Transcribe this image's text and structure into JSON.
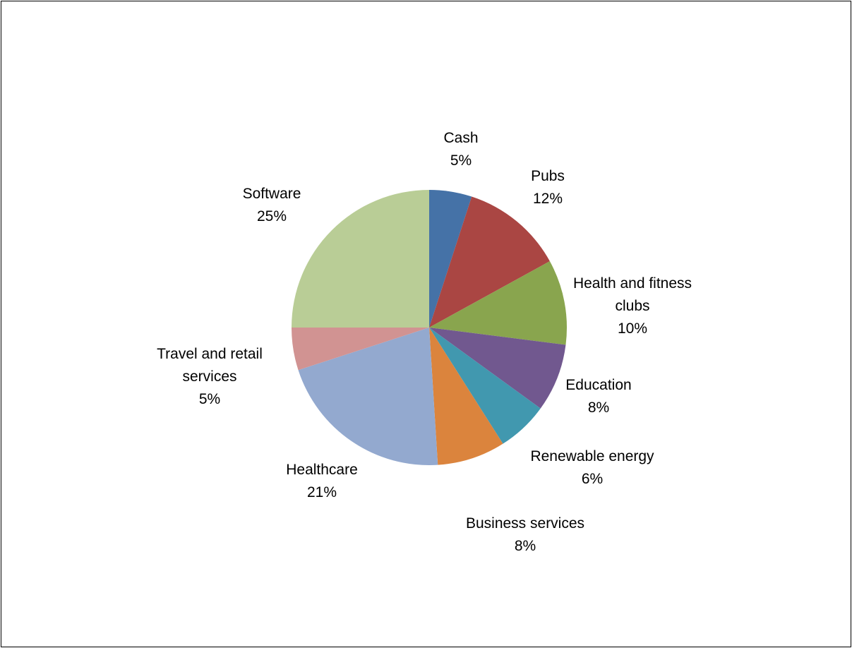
{
  "chart_data": {
    "type": "pie",
    "title": "",
    "start": "top",
    "direction": "clockwise",
    "slices": [
      {
        "name": "Cash",
        "value": 5,
        "label_lines": [
          "Cash",
          "5%"
        ],
        "color": "#4572A7"
      },
      {
        "name": "Pubs",
        "value": 12,
        "label_lines": [
          "Pubs",
          "12%"
        ],
        "color": "#AA4643"
      },
      {
        "name": "Health and fitness clubs",
        "value": 10,
        "label_lines": [
          "Health and fitness",
          "clubs",
          "10%"
        ],
        "color": "#89A54E"
      },
      {
        "name": "Education",
        "value": 8,
        "label_lines": [
          "Education",
          "8%"
        ],
        "color": "#71588F"
      },
      {
        "name": "Renewable energy",
        "value": 6,
        "label_lines": [
          "Renewable energy",
          "6%"
        ],
        "color": "#4198AF"
      },
      {
        "name": "Business services",
        "value": 8,
        "label_lines": [
          "Business services",
          "8%"
        ],
        "color": "#DB843D"
      },
      {
        "name": "Healthcare",
        "value": 21,
        "label_lines": [
          "Healthcare",
          "21%"
        ],
        "color": "#93A9CF"
      },
      {
        "name": "Travel and retail services",
        "value": 5,
        "label_lines": [
          "Travel and retail",
          "services",
          "5%"
        ],
        "color": "#D19392"
      },
      {
        "name": "Software",
        "value": 25,
        "label_lines": [
          "Software",
          "25%"
        ],
        "color": "#B9CD96"
      }
    ]
  }
}
